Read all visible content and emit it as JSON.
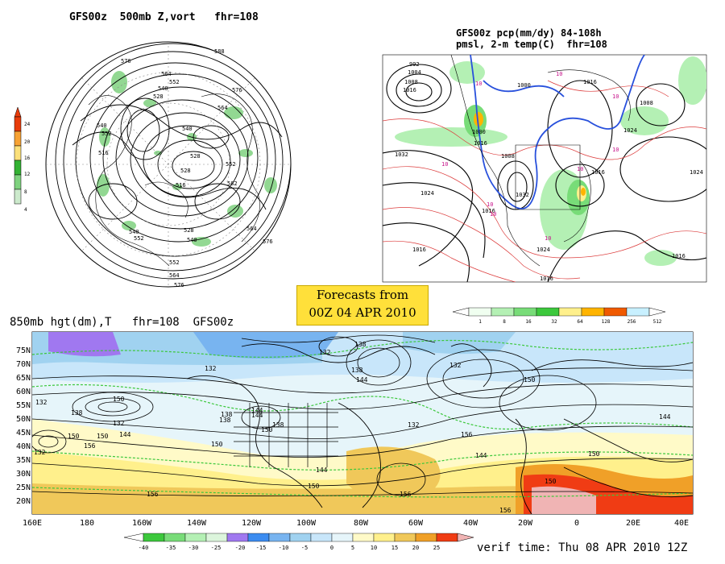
{
  "panels": {
    "top_left": {
      "title": "GFS00z  500mb Z,vort   fhr=108",
      "contour_labels": [
        "576",
        "588",
        "564",
        "552",
        "540",
        "528",
        "540",
        "552",
        "564",
        "576",
        "516",
        "528",
        "552",
        "540",
        "516",
        "528",
        "540",
        "552",
        "564",
        "576",
        "540",
        "552",
        "564",
        "576",
        "528",
        "582"
      ],
      "colorbar_ticks": [
        "24",
        "20",
        "16",
        "12",
        "8",
        "4"
      ],
      "colorbar_colors": [
        "#e83c0a",
        "#f7a234",
        "#fbe07a",
        "#33b233",
        "#7fd27f",
        "#cceacc"
      ]
    },
    "top_right": {
      "title_line1": "GFS00z pcp(mm/dy) 84-108h",
      "title_line2": "pmsl, 2-m temp(C)  fhr=108",
      "isobar_labels": [
        "992",
        "1004",
        "1008",
        "1016",
        "1000",
        "1016",
        "1032",
        "1024",
        "1016",
        "1032",
        "1024",
        "1016",
        "1008",
        "1024",
        "1016",
        "1016",
        "1024",
        "1000",
        "1008",
        "1016",
        "1016"
      ],
      "temp_labels": [
        "10",
        "10",
        "10",
        "10",
        "10",
        "10",
        "10",
        "10",
        "10"
      ],
      "colorbar_ticks": [
        "1",
        "8",
        "16",
        "32",
        "64",
        "128",
        "256",
        "512"
      ],
      "colorbar_colors": [
        "#f0fff0",
        "#b4f0b4",
        "#78dc78",
        "#3cc83c",
        "#fff08c",
        "#ffb400",
        "#f05a00",
        "#c8f0ff"
      ]
    },
    "forecast_box": {
      "line1": "Forecasts from",
      "line2": "00Z 04 APR 2010"
    },
    "bottom": {
      "title": "850mb hgt(dm),T   fhr=108  GFS00z",
      "lat_labels": [
        "75N",
        "70N",
        "65N",
        "60N",
        "55N",
        "50N",
        "45N",
        "40N",
        "35N",
        "30N",
        "25N",
        "20N"
      ],
      "lon_labels": [
        "160E",
        "180",
        "160W",
        "140W",
        "120W",
        "100W",
        "80W",
        "60W",
        "40W",
        "20W",
        "0",
        "20E",
        "40E"
      ],
      "contour_labels": [
        "132",
        "138",
        "132",
        "144",
        "138",
        "150",
        "156",
        "132",
        "132",
        "138",
        "144",
        "150",
        "156",
        "132",
        "138",
        "144",
        "132",
        "150",
        "132",
        "138",
        "144",
        "150",
        "156",
        "150",
        "144",
        "156",
        "150",
        "144",
        "150",
        "156",
        "138",
        "144",
        "150",
        "150"
      ],
      "colorbar_ticks": [
        "-40",
        "-35",
        "-30",
        "-25",
        "-20",
        "-15",
        "-10",
        "-5",
        "0",
        "5",
        "10",
        "15",
        "20",
        "25"
      ],
      "colorbar_colors": [
        "#3cc83c",
        "#78dc78",
        "#b4f0b4",
        "#dcf5dc",
        "#a078f0",
        "#3c8cf0",
        "#78b4f0",
        "#a0d2f0",
        "#c8e6fa",
        "#e6f5fa",
        "#fffac8",
        "#fff08c",
        "#f0c85a",
        "#f0a028",
        "#f03c14",
        "#f0b4b4"
      ],
      "verif_time": "verif time: Thu 08 APR 2010 12Z"
    }
  }
}
